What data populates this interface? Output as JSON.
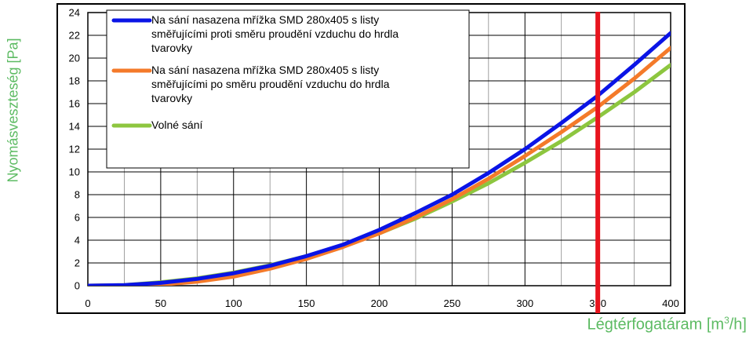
{
  "chart_data": {
    "type": "line",
    "xlabel": "Légtérfogatáram [m",
    "xlabel_exponent": "3",
    "xlabel_suffix": "/h]",
    "ylabel": "Nyomásveszteség [Pa]",
    "xlim": [
      0,
      400
    ],
    "ylim": [
      0,
      24
    ],
    "xticks": [
      "0",
      "50",
      "100",
      "150",
      "200",
      "250",
      "300",
      "350",
      "400"
    ],
    "yticks": [
      "0",
      "2",
      "4",
      "6",
      "8",
      "10",
      "12",
      "14",
      "16",
      "18",
      "20",
      "22",
      "24"
    ],
    "grid": true,
    "legend_position": "top-left",
    "series": [
      {
        "name": "Na sání nasazena mřížka SMD 280x405 s listy směřujícími proti směru proudění vzduchu do hrdla tvarovky",
        "color": "#0a14e6",
        "x": [
          0,
          25,
          50,
          75,
          100,
          125,
          150,
          175,
          200,
          225,
          250,
          275,
          300,
          325,
          350,
          375,
          400
        ],
        "y": [
          0,
          0.05,
          0.25,
          0.6,
          1.1,
          1.75,
          2.6,
          3.6,
          4.9,
          6.4,
          8.0,
          9.9,
          12.0,
          14.3,
          16.7,
          19.4,
          22.2
        ]
      },
      {
        "name": "Na sání nasazena mřížka SMD 280x405 s listy směřujícími po směru proudění vzduchu do hrdla tvarovky",
        "color": "#f47a2a",
        "x": [
          0,
          25,
          50,
          75,
          100,
          125,
          150,
          175,
          200,
          225,
          250,
          275,
          300,
          325,
          350,
          375,
          400
        ],
        "y": [
          0,
          0.02,
          0.1,
          0.35,
          0.8,
          1.5,
          2.35,
          3.4,
          4.6,
          6.0,
          7.6,
          9.4,
          11.4,
          13.5,
          15.7,
          18.2,
          20.9
        ]
      },
      {
        "name": "Volné sání",
        "color": "#8dc63f",
        "x": [
          0,
          25,
          50,
          75,
          100,
          125,
          150,
          175,
          200,
          225,
          250,
          275,
          300,
          325,
          350,
          375,
          400
        ],
        "y": [
          0,
          0.05,
          0.3,
          0.65,
          1.15,
          1.8,
          2.6,
          3.5,
          4.6,
          5.9,
          7.4,
          9.0,
          10.8,
          12.7,
          14.8,
          17.0,
          19.4
        ]
      }
    ],
    "reference_line": {
      "x": 350,
      "color": "#e8141e"
    }
  }
}
